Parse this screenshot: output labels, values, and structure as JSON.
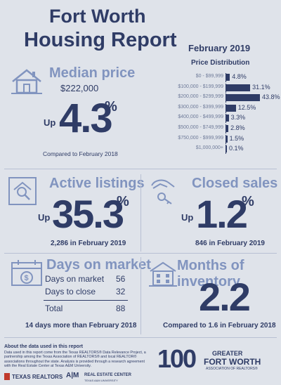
{
  "header": {
    "title_line1": "Fort Worth",
    "title_line2": "Housing Report"
  },
  "price_distribution": {
    "date": "February 2019",
    "title": "Price Distribution",
    "rows": [
      {
        "label": "$0 - $99,999",
        "value": "4.8%",
        "pct": 4.8
      },
      {
        "label": "$100,000 - $199,999",
        "value": "31.1%",
        "pct": 31.1
      },
      {
        "label": "$200,000 - $299,999",
        "value": "43.8%",
        "pct": 43.8
      },
      {
        "label": "$300,000 - $399,999",
        "value": "12.5%",
        "pct": 12.5
      },
      {
        "label": "$400,000 - $499,999",
        "value": "3.3%",
        "pct": 3.3
      },
      {
        "label": "$500,000 - $749,999",
        "value": "2.8%",
        "pct": 2.8
      },
      {
        "label": "$750,000 - $999,999",
        "value": "1.5%",
        "pct": 1.5
      },
      {
        "label": "$1,000,000+",
        "value": "0.1%",
        "pct": 0.1
      }
    ]
  },
  "median_price": {
    "title": "Median price",
    "value": "$222,000",
    "up": "Up",
    "change": "4.3",
    "pct_sign": "%",
    "caption": "Compared to February 2018"
  },
  "active_listings": {
    "title": "Active listings",
    "up": "Up",
    "change": "35.3",
    "pct_sign": "%",
    "caption": "2,286 in February 2019"
  },
  "closed_sales": {
    "title": "Closed sales",
    "up": "Up",
    "change": "1.2",
    "pct_sign": "%",
    "caption": "846 in February 2019"
  },
  "days_on_market": {
    "title": "Days on market",
    "rows": [
      {
        "label": "Days on market",
        "value": "56"
      },
      {
        "label": "Days to close",
        "value": "32"
      }
    ],
    "total_label": "Total",
    "total_value": "88",
    "caption": "14 days more than February 2018"
  },
  "months_inventory": {
    "title": "Months of inventory",
    "value": "2.2",
    "caption": "Compared to 1.6 in February 2018"
  },
  "footer": {
    "title": "About the data used in this report",
    "text": "Data used in this report come from the Texas REALTORS® Data Relevance Project, a partnership among the Texas Association of REALTORS® and local REALTOR® associations throughout the state. Analysis is provided through a research agreement with the Real Estate Center at Texas A&M University.",
    "logo_texas_realtors": "TEXAS REALTORS",
    "logo_atm": "A|M",
    "logo_rec": "REAL ESTATE CENTER",
    "logo_rec_sub": "TEXAS A&M UNIVERSITY",
    "logo_100": "100",
    "logo_gfw_line1": "GREATER",
    "logo_gfw_line2": "FORT WORTH",
    "logo_gfw_line3": "ASSOCIATION OF REALTORS®"
  },
  "colors": {
    "navy": "#2f3c66",
    "accent": "#8194bf",
    "background": "#dfe3ea"
  }
}
